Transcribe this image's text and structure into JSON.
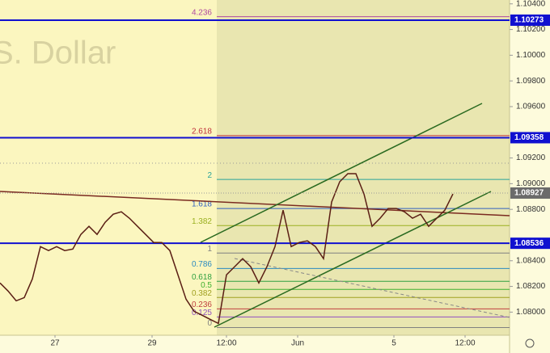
{
  "chart_data": {
    "type": "line",
    "watermark": "S. Dollar",
    "color": "#5a1e14",
    "x": [
      0,
      1,
      2,
      3,
      4,
      5,
      6,
      7,
      8,
      9,
      10,
      11,
      12,
      13,
      14,
      15,
      16,
      17,
      18,
      19,
      20,
      21,
      22,
      23,
      24,
      25,
      26,
      27,
      28,
      29,
      30,
      31,
      32,
      33,
      34,
      35,
      36,
      37,
      38,
      39,
      40,
      41,
      42,
      43,
      44,
      45,
      46,
      47,
      48,
      49,
      50,
      51,
      52,
      53,
      54,
      55,
      56
    ],
    "values": [
      1.08227,
      1.08164,
      1.08088,
      1.08113,
      1.08258,
      1.0851,
      1.08479,
      1.0851,
      1.08479,
      1.08491,
      1.08605,
      1.08668,
      1.08605,
      1.08699,
      1.08762,
      1.08781,
      1.08731,
      1.08668,
      1.08605,
      1.08542,
      1.08542,
      1.08479,
      1.0829,
      1.08101,
      1.08006,
      1.07975,
      1.07943,
      1.07912,
      1.0829,
      1.08353,
      1.08416,
      1.08353,
      1.08227,
      1.08353,
      1.0851,
      1.08794,
      1.0851,
      1.08542,
      1.08555,
      1.0851,
      1.08416,
      1.08857,
      1.09015,
      1.09078,
      1.09078,
      1.0892,
      1.08668,
      1.08731,
      1.08807,
      1.08807,
      1.08781,
      1.08731,
      1.08762,
      1.08668,
      1.08731,
      1.08794,
      1.0892
    ],
    "xlim": [
      0,
      63
    ],
    "ylim": [
      1.0782,
      1.1043
    ],
    "xticks": [
      {
        "value": 6.8,
        "label": "27"
      },
      {
        "value": 18.8,
        "label": "29"
      },
      {
        "value": 28,
        "label": "12:00"
      },
      {
        "value": 36.8,
        "label": "Jun"
      },
      {
        "value": 48.7,
        "label": "5"
      },
      {
        "value": 57.5,
        "label": "12:00"
      }
    ],
    "yticks": [
      {
        "value": 1.104,
        "label": "1.10400"
      },
      {
        "value": 1.102,
        "label": "1.10200"
      },
      {
        "value": 1.1,
        "label": "1.10000"
      },
      {
        "value": 1.098,
        "label": "1.09800"
      },
      {
        "value": 1.096,
        "label": "1.09600"
      },
      {
        "value": 1.092,
        "label": "1.09200"
      },
      {
        "value": 1.09,
        "label": "1.09000"
      },
      {
        "value": 1.088,
        "label": "1.08800"
      },
      {
        "value": 1.084,
        "label": "1.08400"
      },
      {
        "value": 1.082,
        "label": "1.08200"
      },
      {
        "value": 1.08,
        "label": "1.08000"
      }
    ],
    "hlines": [
      1.10273,
      1.09358,
      1.08536
    ],
    "hline_color": "#1010d0",
    "last_price": 1.08927,
    "fib_levels": [
      {
        "label": "4.236",
        "value": 1.103,
        "color": "#b04aa0"
      },
      {
        "label": "2.618",
        "value": 1.09374,
        "color": "#c0303a"
      },
      {
        "label": "2",
        "value": 1.09033,
        "color": "#2aa39a"
      },
      {
        "label": "1.618",
        "value": 1.08807,
        "color": "#3060c0"
      },
      {
        "label": "1.382",
        "value": 1.08674,
        "color": "#9ab020"
      },
      {
        "label": "1",
        "value": 1.0846,
        "color": "#808080"
      },
      {
        "label": "0.786",
        "value": 1.0834,
        "color": "#2a8ac0"
      },
      {
        "label": "0.618",
        "value": 1.0824,
        "color": "#30a040"
      },
      {
        "label": "0.5",
        "value": 1.08177,
        "color": "#40b030"
      },
      {
        "label": "0.382",
        "value": 1.08114,
        "color": "#a0a020"
      },
      {
        "label": "0.236",
        "value": 1.08025,
        "color": "#c04040"
      },
      {
        "label": "0.125",
        "value": 1.07962,
        "color": "#9050c0"
      },
      {
        "label": "0",
        "value": 1.0788,
        "color": "#808080"
      }
    ]
  }
}
